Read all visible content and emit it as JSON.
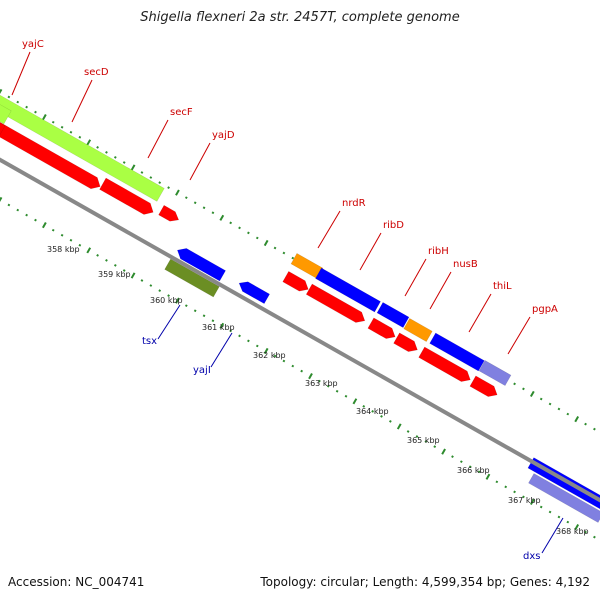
{
  "title": "Shigella flexneri 2a str. 2457T, complete genome",
  "footer": {
    "accession": "Accession: NC_004741",
    "summary": "Topology: circular; Length: 4,599,354 bp; Genes: 4,192"
  },
  "colors": {
    "backbone": "#888888",
    "tick": "#2e8b2e",
    "cds_forward": "#ff0000",
    "cds_reverse": "#0000ff",
    "orange": "#ff9900",
    "lime": "#aaff44",
    "olive": "#6b8e23",
    "lavender": "#8080e0",
    "label_red": "#cc0000",
    "label_blue": "#0000aa"
  },
  "scale": {
    "ticks": [
      {
        "label": "358 kbp"
      },
      {
        "label": "359 kbp"
      },
      {
        "label": "360 kbp"
      },
      {
        "label": "361 kbp"
      },
      {
        "label": "362 kbp"
      },
      {
        "label": "363 kbp"
      },
      {
        "label": "364 kbp"
      },
      {
        "label": "365 kbp"
      },
      {
        "label": "366 kbp"
      },
      {
        "label": "367 kbp"
      },
      {
        "label": "368 kbp"
      }
    ]
  },
  "gene_labels": [
    {
      "name": "yajC",
      "strand": "forward"
    },
    {
      "name": "secD",
      "strand": "forward"
    },
    {
      "name": "secF",
      "strand": "forward"
    },
    {
      "name": "yajD",
      "strand": "forward"
    },
    {
      "name": "nrdR",
      "strand": "forward"
    },
    {
      "name": "ribD",
      "strand": "forward"
    },
    {
      "name": "ribH",
      "strand": "forward"
    },
    {
      "name": "nusB",
      "strand": "forward"
    },
    {
      "name": "thiL",
      "strand": "forward"
    },
    {
      "name": "pgpA",
      "strand": "forward"
    },
    {
      "name": "tsx",
      "strand": "reverse"
    },
    {
      "name": "yajI",
      "strand": "reverse"
    },
    {
      "name": "dxs",
      "strand": "reverse"
    }
  ]
}
